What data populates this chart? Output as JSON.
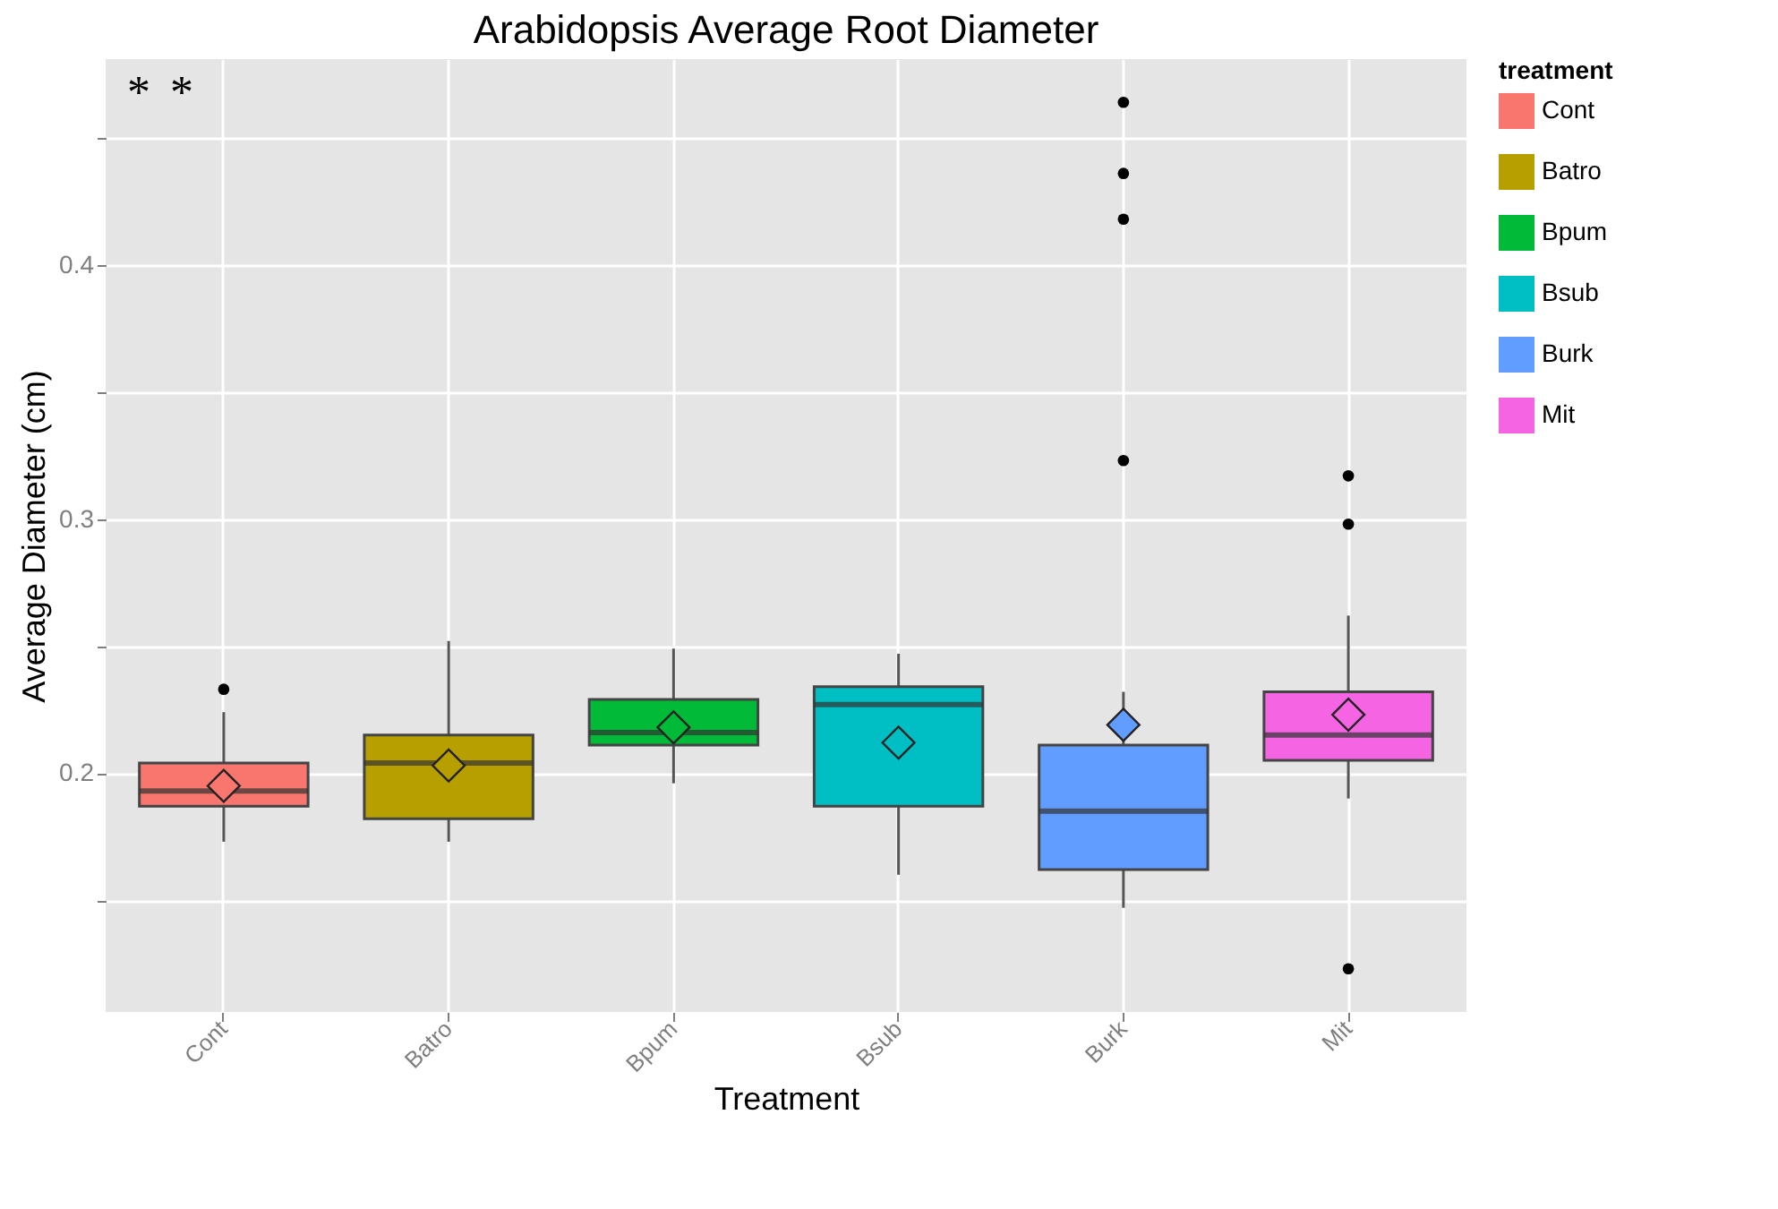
{
  "chart_data": {
    "type": "box",
    "title": "Arabidopsis Average Root Diameter",
    "xlabel": "Treatment",
    "ylabel": "Average Diameter (cm)",
    "legend_title": "treatment",
    "legend": "right",
    "grid": true,
    "categories": [
      "Cont",
      "Batro",
      "Bpum",
      "Bsub",
      "Burk",
      "Mit"
    ],
    "series": [
      {
        "name": "Cont",
        "color": "#f8766d",
        "boxes": [
          {
            "low": 0.173,
            "q1": 0.187,
            "median": 0.193,
            "q3": 0.204,
            "high": 0.224,
            "mean": 0.195,
            "outliers": [
              0.233
            ]
          },
          null,
          null,
          null,
          null,
          null
        ]
      },
      {
        "name": "Batro",
        "color": "#b79f00",
        "boxes": [
          null,
          {
            "low": 0.173,
            "q1": 0.182,
            "median": 0.204,
            "q3": 0.215,
            "high": 0.252,
            "mean": 0.203
          },
          null,
          null,
          null,
          null
        ]
      },
      {
        "name": "Bpum",
        "color": "#00ba38",
        "boxes": [
          null,
          null,
          {
            "low": 0.196,
            "q1": 0.211,
            "median": 0.216,
            "q3": 0.229,
            "high": 0.249,
            "mean": 0.218
          },
          null,
          null,
          null
        ]
      },
      {
        "name": "Bsub",
        "color": "#00bfc4",
        "boxes": [
          null,
          null,
          null,
          {
            "low": 0.16,
            "q1": 0.187,
            "median": 0.227,
            "q3": 0.234,
            "high": 0.247,
            "mean": 0.212
          },
          null,
          null
        ]
      },
      {
        "name": "Burk",
        "color": "#619cff",
        "boxes": [
          null,
          null,
          null,
          null,
          {
            "low": 0.147,
            "q1": 0.162,
            "median": 0.185,
            "q3": 0.211,
            "high": 0.232,
            "mean": 0.219,
            "outliers": [
              0.464,
              0.436,
              0.418,
              0.323
            ]
          },
          null
        ]
      },
      {
        "name": "Mit",
        "color": "#f564e3",
        "boxes": [
          null,
          null,
          null,
          null,
          null,
          {
            "low": 0.19,
            "q1": 0.205,
            "median": 0.215,
            "q3": 0.232,
            "high": 0.262,
            "mean": 0.223,
            "outliers": [
              0.317,
              0.298,
              0.123
            ]
          }
        ]
      }
    ],
    "annotations": [
      "*",
      "*"
    ],
    "ylim": [
      0.106,
      0.481
    ],
    "yticks": [
      {
        "value": 0.15,
        "label": null
      },
      0.2,
      {
        "value": 0.25,
        "label": null
      },
      0.3,
      {
        "value": 0.35,
        "label": null
      },
      0.4,
      {
        "value": 0.45,
        "label": null
      }
    ]
  }
}
